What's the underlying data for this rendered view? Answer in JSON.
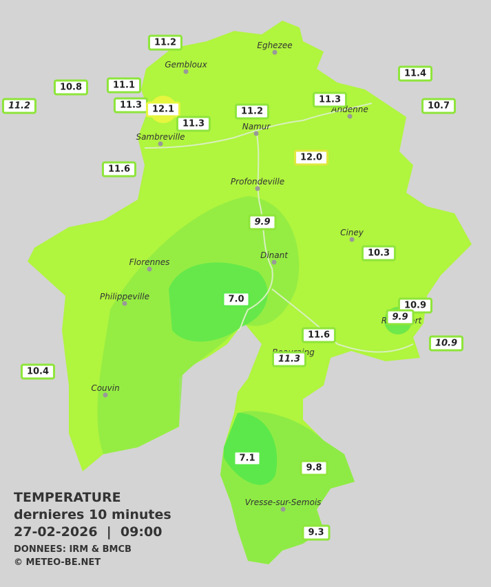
{
  "legend": {
    "title": "TEMPERATURE",
    "subtitle": "dernieres 10 minutes",
    "datetime": "27-02-2026  |  09:00",
    "source": "DONNEES: IRM & BMCB",
    "copyright": "© METEO-BE.NET"
  },
  "stations": [
    "11.2",
    "10.8",
    "11.2",
    "11.1",
    "11.3",
    "12.1",
    "11.3",
    "11.2",
    "11.3",
    "11.4",
    "10.7",
    "12.0",
    "11.6",
    "9.9",
    "10.3",
    "7.0",
    "10.9",
    "9.9",
    "10.9",
    "11.6",
    "11.3",
    "10.4",
    "7.1",
    "9.8",
    "9.3"
  ],
  "cities": [
    "Eghezee",
    "Gembloux",
    "Andenne",
    "Namur",
    "Sambreville",
    "Profondeville",
    "Ciney",
    "Dinant",
    "Florennes",
    "Philippeville",
    "Beauraing",
    "Rochefort",
    "Couvin",
    "Vresse-sur-Semois"
  ]
}
